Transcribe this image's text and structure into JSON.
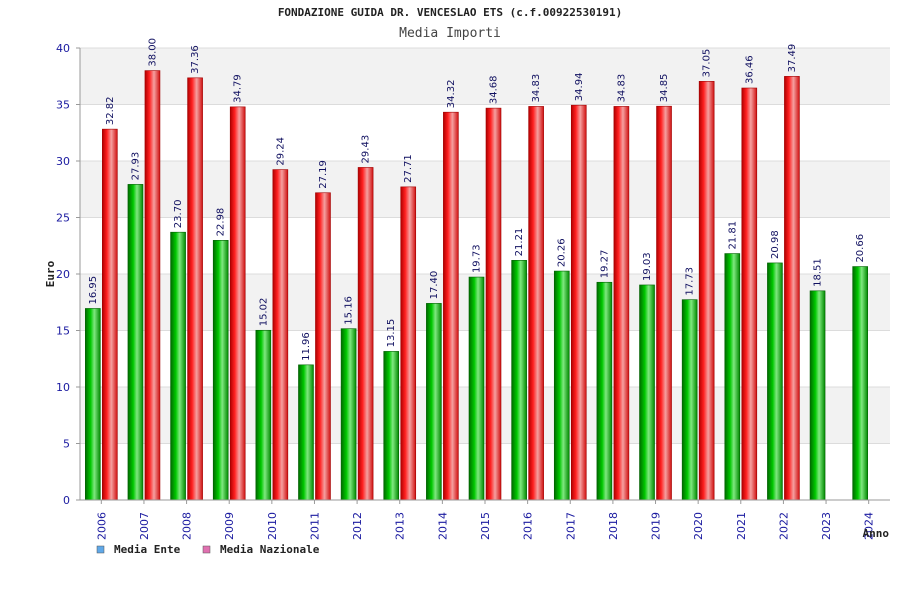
{
  "chart_data": {
    "type": "bar",
    "title": "FONDAZIONE GUIDA DR. VENCESLAO ETS (c.f.00922530191)",
    "subtitle": "Media Importi",
    "xlabel": "Anno",
    "ylabel": "Euro",
    "ylim": [
      0,
      40
    ],
    "yticks": [
      "0",
      "5",
      "10",
      "15",
      "20",
      "25",
      "30",
      "35",
      "40"
    ],
    "categories": [
      "2006",
      "2007",
      "2008",
      "2009",
      "2010",
      "2011",
      "2012",
      "2013",
      "2014",
      "2015",
      "2016",
      "2017",
      "2018",
      "2019",
      "2020",
      "2021",
      "2022",
      "2023",
      "2024"
    ],
    "series": [
      {
        "name": "Media Ente",
        "color": "#00b000",
        "legend_color": "#5fa8e8",
        "values": [
          16.95,
          27.93,
          23.7,
          22.98,
          15.02,
          11.96,
          15.16,
          13.15,
          17.4,
          19.73,
          21.21,
          20.26,
          19.27,
          19.03,
          17.73,
          21.81,
          20.98,
          18.51,
          20.66
        ],
        "labels": [
          "16.95",
          "27.93",
          "23.70",
          "22.98",
          "15.02",
          "11.96",
          "15.16",
          "13.15",
          "17.40",
          "19.73",
          "21.21",
          "20.26",
          "19.27",
          "19.03",
          "17.73",
          "21.81",
          "20.98",
          "18.51",
          "20.66"
        ]
      },
      {
        "name": "Media Nazionale",
        "color": "#e82020",
        "legend_color": "#e070b0",
        "values": [
          32.82,
          38.0,
          37.36,
          34.79,
          29.24,
          27.19,
          29.43,
          27.71,
          34.32,
          34.68,
          34.83,
          34.94,
          34.83,
          34.85,
          37.05,
          36.46,
          37.49,
          null,
          null
        ],
        "labels": [
          "32.82",
          "38.00",
          "37.36",
          "34.79",
          "29.24",
          "27.19",
          "29.43",
          "27.71",
          "34.32",
          "34.68",
          "34.83",
          "34.94",
          "34.83",
          "34.85",
          "37.05",
          "36.46",
          "37.49",
          null,
          null
        ]
      }
    ],
    "grid": true,
    "legend": "bottom-left"
  }
}
